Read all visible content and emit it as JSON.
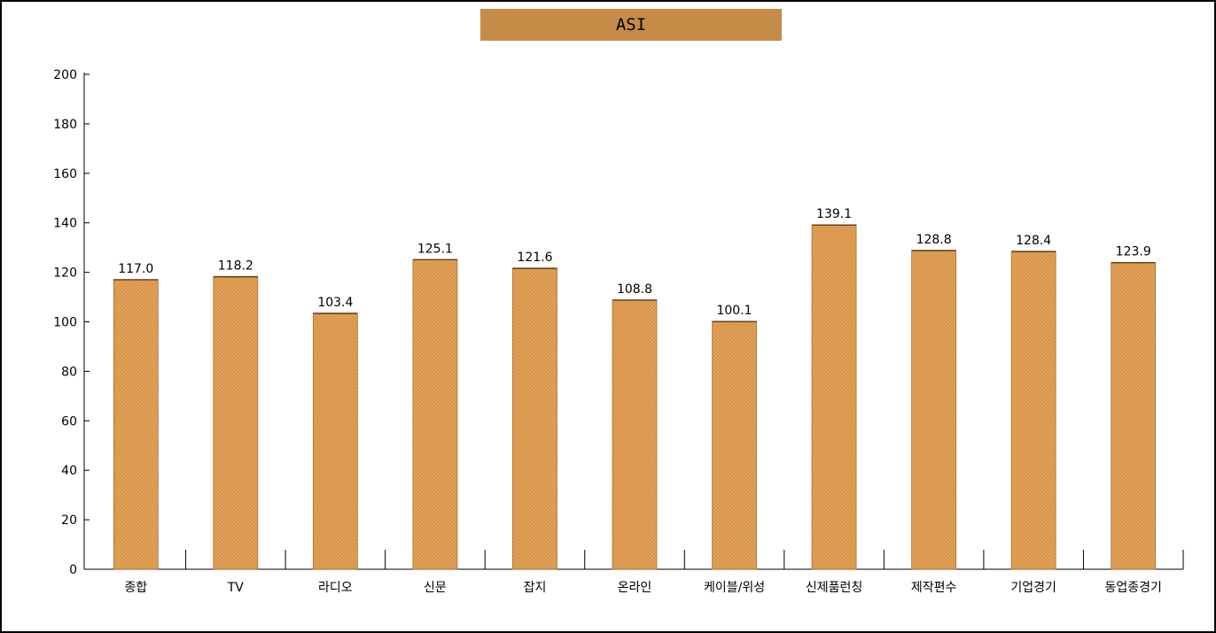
{
  "chart_data": {
    "type": "bar",
    "title": "ASI",
    "categories": [
      "종합",
      "TV",
      "라디오",
      "신문",
      "잡지",
      "온라인",
      "케이블/위성",
      "신제품런칭",
      "제작편수",
      "기업경기",
      "동업종경기"
    ],
    "values": [
      117.0,
      118.2,
      103.4,
      125.1,
      121.6,
      108.8,
      100.1,
      139.1,
      128.8,
      128.4,
      123.9
    ],
    "value_labels": [
      "117.0",
      "118.2",
      "103.4",
      "125.1",
      "121.6",
      "108.8",
      "100.1",
      "139.1",
      "128.8",
      "128.4",
      "123.9"
    ],
    "y_ticks": [
      "0",
      "20",
      "40",
      "60",
      "80",
      "100",
      "120",
      "140",
      "160",
      "180",
      "200"
    ],
    "ylim": [
      0,
      200
    ],
    "xlabel": "",
    "ylabel": "",
    "grid": false,
    "bar_color": "#e6a45c",
    "bar_pattern_color": "#c98a3e",
    "title_bar_color": "#c68c47"
  }
}
